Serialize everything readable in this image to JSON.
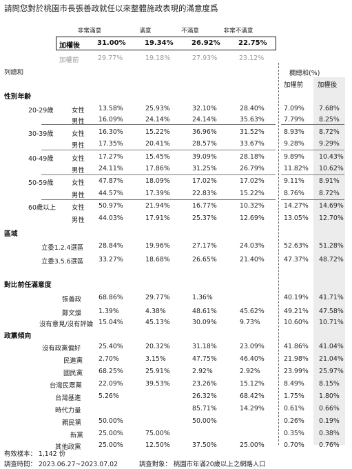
{
  "title": "請問您對於桃園市長張善政就任以來整體施政表現的滿意度爲",
  "columns": [
    "非常滿意",
    "滿意",
    "不滿意",
    "非常不滿意"
  ],
  "weighted_after": {
    "label": "加權後",
    "values": [
      "31.00%",
      "19.34%",
      "26.92%",
      "22.75%"
    ]
  },
  "weighted_before": {
    "label": "加權前",
    "values": [
      "29.77%",
      "19.18%",
      "27.93%",
      "23.12%"
    ]
  },
  "col_label": "列總和",
  "right_header": {
    "title": "欄總和(%)",
    "before": "加權前",
    "after": "加權後"
  },
  "sections": {
    "gender_age": "性別年齡",
    "region": "區域",
    "prev_mayor": "對比前任滿意度",
    "party": "政黨傾向"
  },
  "rows": [
    {
      "g": "20-29歲",
      "s": "女性",
      "v": [
        "13.58%",
        "25.93%",
        "32.10%",
        "28.40%"
      ],
      "b": "7.09%",
      "a": "7.68%"
    },
    {
      "g": "",
      "s": "男性",
      "v": [
        "16.09%",
        "24.14%",
        "24.14%",
        "35.63%"
      ],
      "b": "7.79%",
      "a": "8.25%"
    },
    {
      "g": "30-39歲",
      "s": "女性",
      "v": [
        "16.30%",
        "15.22%",
        "36.96%",
        "31.52%"
      ],
      "b": "8.93%",
      "a": "8.72%"
    },
    {
      "g": "",
      "s": "男性",
      "v": [
        "17.35%",
        "20.41%",
        "28.57%",
        "33.67%"
      ],
      "b": "9.28%",
      "a": "9.29%"
    },
    {
      "g": "40-49歲",
      "s": "女性",
      "v": [
        "17.27%",
        "15.45%",
        "39.09%",
        "28.18%"
      ],
      "b": "9.89%",
      "a": "10.43%"
    },
    {
      "g": "",
      "s": "男性",
      "v": [
        "24.11%",
        "17.86%",
        "31.25%",
        "26.79%"
      ],
      "b": "11.82%",
      "a": "10.62%"
    },
    {
      "g": "50-59歲",
      "s": "女性",
      "v": [
        "47.87%",
        "18.09%",
        "17.02%",
        "17.02%"
      ],
      "b": "9.11%",
      "a": "8.91%"
    },
    {
      "g": "",
      "s": "男性",
      "v": [
        "44.57%",
        "17.39%",
        "22.83%",
        "15.22%"
      ],
      "b": "8.76%",
      "a": "8.72%"
    },
    {
      "g": "60歲以上",
      "s": "女性",
      "v": [
        "50.97%",
        "21.94%",
        "16.77%",
        "10.32%"
      ],
      "b": "14.27%",
      "a": "14.69%"
    },
    {
      "g": "",
      "s": "男性",
      "v": [
        "44.03%",
        "17.91%",
        "25.37%",
        "12.69%"
      ],
      "b": "13.05%",
      "a": "12.70%"
    }
  ],
  "region_rows": [
    {
      "l": "立委1.2.4選區",
      "v": [
        "28.84%",
        "19.96%",
        "27.17%",
        "24.03%"
      ],
      "b": "52.63%",
      "a": "51.28%"
    },
    {
      "l": "立委3.5.6選區",
      "v": [
        "33.27%",
        "18.68%",
        "26.65%",
        "21.40%"
      ],
      "b": "47.37%",
      "a": "48.72%"
    }
  ],
  "prev_rows": [
    {
      "l": "張善政",
      "v": [
        "68.86%",
        "29.77%",
        "1.36%",
        ""
      ],
      "b": "40.19%",
      "a": "41.71%"
    },
    {
      "l": "鄭文燦",
      "v": [
        "1.39%",
        "4.38%",
        "48.61%",
        "45.62%"
      ],
      "b": "49.21%",
      "a": "47.58%"
    },
    {
      "l": "沒有意見/沒有評論",
      "v": [
        "15.04%",
        "45.13%",
        "30.09%",
        "9.73%"
      ],
      "b": "10.60%",
      "a": "10.71%"
    }
  ],
  "party_rows": [
    {
      "l": "沒有政黨偏好",
      "v": [
        "25.40%",
        "20.32%",
        "31.18%",
        "23.09%"
      ],
      "b": "41.86%",
      "a": "41.04%"
    },
    {
      "l": "民進黨",
      "v": [
        "2.70%",
        "3.15%",
        "47.75%",
        "46.40%"
      ],
      "b": "21.98%",
      "a": "21.04%"
    },
    {
      "l": "國民黨",
      "v": [
        "68.25%",
        "25.91%",
        "2.92%",
        "2.92%"
      ],
      "b": "23.99%",
      "a": "25.97%"
    },
    {
      "l": "台灣民眾黨",
      "v": [
        "22.09%",
        "39.53%",
        "23.26%",
        "15.12%"
      ],
      "b": "8.49%",
      "a": "8.15%"
    },
    {
      "l": "台灣基進",
      "v": [
        "5.26%",
        "",
        "26.32%",
        "68.42%"
      ],
      "b": "1.75%",
      "a": "1.80%"
    },
    {
      "l": "時代力量",
      "v": [
        "",
        "",
        "85.71%",
        "14.29%"
      ],
      "b": "0.61%",
      "a": "0.66%"
    },
    {
      "l": "親民黨",
      "v": [
        "50.00%",
        "",
        "50.00%",
        ""
      ],
      "b": "0.26%",
      "a": "0.19%"
    },
    {
      "l": "新黨",
      "v": [
        "25.00%",
        "75.00%",
        "",
        ""
      ],
      "b": "0.35%",
      "a": "0.38%"
    },
    {
      "l": "其他政黨",
      "v": [
        "25.00%",
        "12.50%",
        "37.50%",
        "25.00%"
      ],
      "b": "0.70%",
      "a": "0.76%"
    }
  ],
  "footer": {
    "sample": "有效樣本： 1,142 份",
    "period": "調查時間： 2023.06.27~2023.07.02",
    "target": "調查對象： 桃園市年滿20歲以上之網路人口"
  }
}
